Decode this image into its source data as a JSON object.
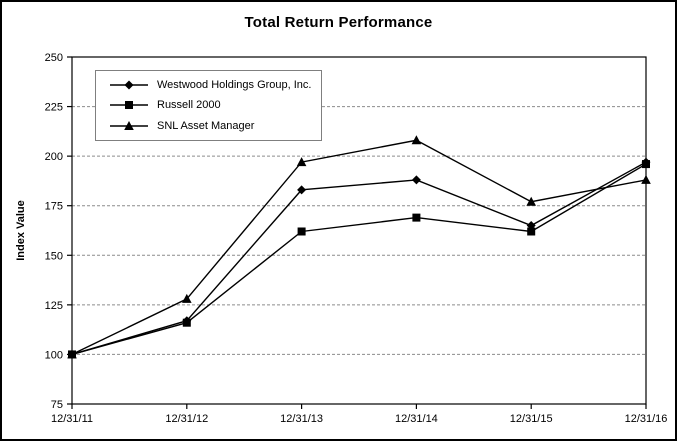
{
  "chart_data": {
    "type": "line",
    "title": "Total Return Performance",
    "ylabel": "Index Value",
    "xlabel": "",
    "categories": [
      "12/31/11",
      "12/31/12",
      "12/31/13",
      "12/31/14",
      "12/31/15",
      "12/31/16"
    ],
    "series": [
      {
        "name": "Westwood Holdings Group, Inc.",
        "marker": "diamond",
        "values": [
          100,
          117,
          183,
          188,
          165,
          197
        ]
      },
      {
        "name": "Russell 2000",
        "marker": "square",
        "values": [
          100,
          116,
          162,
          169,
          162,
          196
        ]
      },
      {
        "name": "SNL Asset Manager",
        "marker": "triangle",
        "values": [
          100,
          128,
          197,
          208,
          177,
          188
        ]
      }
    ],
    "ylim": [
      75,
      250
    ],
    "yticks": [
      75,
      100,
      125,
      150,
      175,
      200,
      225,
      250
    ],
    "grid": "horizontal dashed",
    "legend_position": "top-left inside plot",
    "colors": {
      "series": "#000000",
      "gridline": "#8c8c8c",
      "axis": "#000000",
      "plot_border": "#000000",
      "legend_border": "#7f7f7f",
      "background": "#ffffff",
      "text": "#000000"
    }
  }
}
